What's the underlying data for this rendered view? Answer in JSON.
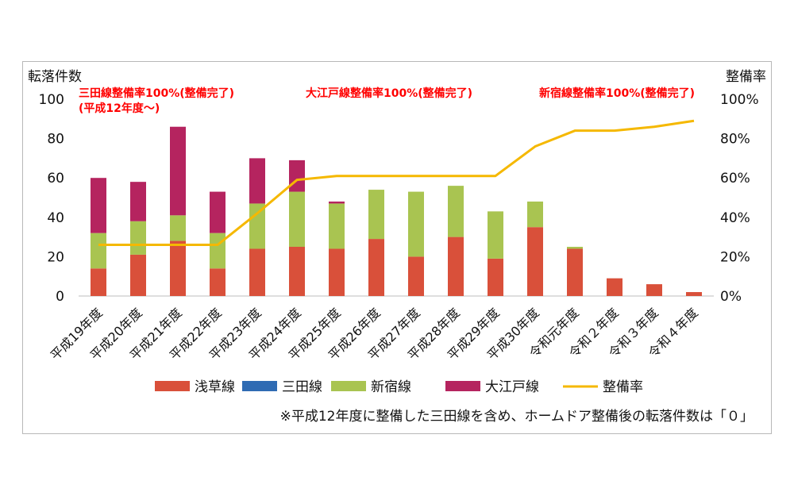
{
  "chart_data": {
    "type": "bar",
    "stacked": true,
    "y_left_label": "転落件数",
    "y_right_label": "整備率",
    "ylim": [
      0,
      100
    ],
    "y2lim": [
      0,
      100
    ],
    "y_ticks": [
      "0",
      "20",
      "40",
      "60",
      "80",
      "100"
    ],
    "y2_ticks": [
      "0%",
      "20%",
      "40%",
      "60%",
      "80%",
      "100%"
    ],
    "categories": [
      "平成19年度",
      "平成20年度",
      "平成21年度",
      "平成22年度",
      "平成23年度",
      "平成24年度",
      "平成25年度",
      "平成26年度",
      "平成27年度",
      "平成28年度",
      "平成29年度",
      "平成30年度",
      "令和元年度",
      "令和２年度",
      "令和３年度",
      "令和４年度"
    ],
    "series": [
      {
        "name": "浅草線",
        "color": "#d9503a",
        "values": [
          14,
          21,
          28,
          14,
          24,
          25,
          24,
          29,
          20,
          30,
          19,
          35,
          24,
          9,
          6,
          2
        ]
      },
      {
        "name": "三田線",
        "color": "#2f6bb3",
        "values": [
          0,
          0,
          0,
          0,
          0,
          0,
          0,
          0,
          0,
          0,
          0,
          0,
          0,
          0,
          0,
          0
        ]
      },
      {
        "name": "新宿線",
        "color": "#a9c451",
        "values": [
          18,
          17,
          13,
          18,
          23,
          28,
          23,
          25,
          33,
          26,
          24,
          13,
          1,
          0,
          0,
          0
        ]
      },
      {
        "name": "大江戸線",
        "color": "#b5245f",
        "values": [
          28,
          20,
          45,
          21,
          23,
          16,
          1,
          0,
          0,
          0,
          0,
          0,
          0,
          0,
          0,
          0
        ]
      }
    ],
    "line": {
      "name": "整備率",
      "color": "#f5b800",
      "axis": "right",
      "values": [
        26,
        26,
        26,
        26,
        42,
        59,
        61,
        61,
        61,
        61,
        61,
        76,
        84,
        84,
        86,
        89
      ]
    },
    "annotations": [
      {
        "text": "三田線整備率100%(整備完了)",
        "sub": "(平成12年度～)"
      },
      {
        "text": "大江戸線整備率100%(整備完了)"
      },
      {
        "text": "新宿線整備率100%(整備完了)"
      }
    ],
    "legend_position": "bottom",
    "grid": false,
    "footnote": "※平成12年度に整備した三田線を含め、ホームドア整備後の転落件数は「０」"
  }
}
